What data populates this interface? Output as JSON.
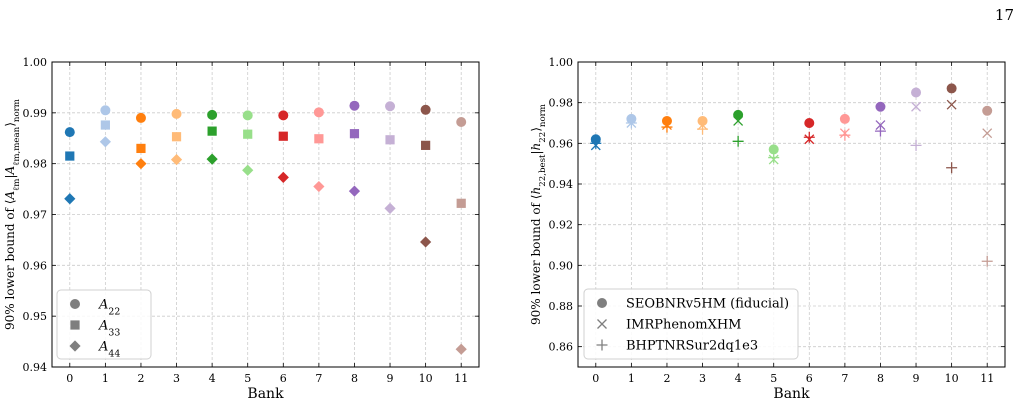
{
  "page_number": "17",
  "chart_data": [
    {
      "type": "scatter",
      "xlabel": "Bank",
      "ylabel_parts": [
        "90% lower bound of ⟨",
        "A",
        "ℓm",
        "|",
        "A",
        "ℓm,mean",
        "⟩",
        "norm"
      ],
      "xlim": [
        -0.5,
        11.5
      ],
      "ylim": [
        0.94,
        1.0
      ],
      "xticks": [
        0,
        1,
        2,
        3,
        4,
        5,
        6,
        7,
        8,
        9,
        10,
        11
      ],
      "yticks": [
        0.94,
        0.95,
        0.96,
        0.97,
        0.98,
        0.99,
        1.0
      ],
      "ytick_labels": [
        "0.94",
        "0.95",
        "0.96",
        "0.97",
        "0.98",
        "0.99",
        "1.00"
      ],
      "grid": true,
      "legend_position": "lower-left",
      "bank_colors": [
        "#1f77b4",
        "#aec7e8",
        "#ff7f0e",
        "#ffbb78",
        "#2ca02c",
        "#98df8a",
        "#d62728",
        "#ff9896",
        "#9467bd",
        "#c5b0d5",
        "#8c564b",
        "#c49c94"
      ],
      "series": [
        {
          "legend_base": "A",
          "legend_sub": "22",
          "marker": "circle",
          "x": [
            0,
            1,
            2,
            3,
            4,
            5,
            6,
            7,
            8,
            9,
            10,
            11
          ],
          "values": [
            0.9862,
            0.9905,
            0.989,
            0.9898,
            0.9896,
            0.9895,
            0.9895,
            0.9901,
            0.9914,
            0.9913,
            0.9906,
            0.9882
          ]
        },
        {
          "legend_base": "A",
          "legend_sub": "33",
          "marker": "square",
          "x": [
            0,
            1,
            2,
            3,
            4,
            5,
            6,
            7,
            8,
            9,
            10,
            11
          ],
          "values": [
            0.9815,
            0.9876,
            0.983,
            0.9853,
            0.9864,
            0.9858,
            0.9854,
            0.9849,
            0.9859,
            0.9847,
            0.9836,
            0.9722
          ]
        },
        {
          "legend_base": "A",
          "legend_sub": "44",
          "marker": "diamond",
          "x": [
            0,
            1,
            2,
            3,
            4,
            5,
            6,
            7,
            8,
            9,
            10,
            11
          ],
          "values": [
            0.9731,
            0.9843,
            0.98,
            0.9808,
            0.9809,
            0.9787,
            0.9773,
            0.9755,
            0.9746,
            0.9712,
            0.9646,
            0.9435
          ]
        }
      ]
    },
    {
      "type": "scatter",
      "xlabel": "Bank",
      "ylabel_parts": [
        "90% lower bound of ⟨",
        "h",
        "22,best",
        "|",
        "h",
        "22",
        "⟩",
        "norm"
      ],
      "xlim": [
        -0.5,
        11.5
      ],
      "ylim": [
        0.85,
        1.0
      ],
      "xticks": [
        0,
        1,
        2,
        3,
        4,
        5,
        6,
        7,
        8,
        9,
        10,
        11
      ],
      "yticks": [
        0.86,
        0.88,
        0.9,
        0.92,
        0.94,
        0.96,
        0.98,
        1.0
      ],
      "ytick_labels": [
        "0.86",
        "0.88",
        "0.90",
        "0.92",
        "0.94",
        "0.96",
        "0.98",
        "1.00"
      ],
      "grid": true,
      "legend_position": "lower-left",
      "bank_colors": [
        "#1f77b4",
        "#aec7e8",
        "#ff7f0e",
        "#ffbb78",
        "#2ca02c",
        "#98df8a",
        "#d62728",
        "#ff9896",
        "#9467bd",
        "#c5b0d5",
        "#8c564b",
        "#c49c94"
      ],
      "series": [
        {
          "name": "SEOBNRv5HM (fiducial)",
          "marker": "circle",
          "x": [
            0,
            1,
            2,
            3,
            4,
            5,
            6,
            7,
            8,
            9,
            10,
            11
          ],
          "values": [
            0.962,
            0.972,
            0.971,
            0.971,
            0.974,
            0.957,
            0.97,
            0.972,
            0.978,
            0.985,
            0.987,
            0.976
          ]
        },
        {
          "name": "IMRPhenomXHM",
          "marker": "x",
          "x": [
            0,
            1,
            2,
            3,
            4,
            5,
            6,
            7,
            8,
            9,
            10,
            11
          ],
          "values": [
            0.959,
            0.97,
            0.969,
            0.969,
            0.971,
            0.952,
            0.962,
            0.965,
            0.969,
            0.978,
            0.979,
            0.965
          ]
        },
        {
          "name": "BHPTNRSur2dq1e3",
          "marker": "plus",
          "x": [
            0,
            1,
            2,
            3,
            4,
            5,
            6,
            7,
            8,
            9,
            10,
            11
          ],
          "values": [
            0.96,
            0.97,
            0.968,
            0.967,
            0.961,
            0.953,
            0.963,
            0.964,
            0.966,
            0.959,
            0.948,
            0.902
          ]
        }
      ]
    }
  ]
}
